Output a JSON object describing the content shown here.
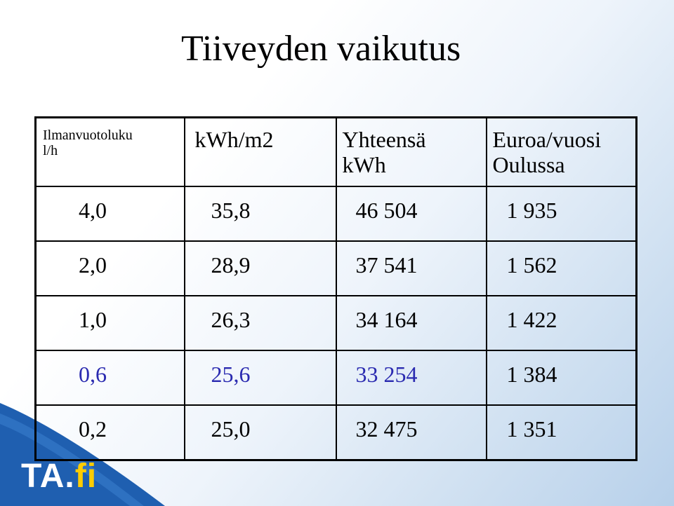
{
  "title": "Tiiveyden vaikutus",
  "table": {
    "headers": [
      [
        "Ilmanvuotoluku",
        "l/h"
      ],
      [
        "kWh/m2",
        ""
      ],
      [
        "Yhteensä",
        "kWh"
      ],
      [
        "Euroa/vuosi",
        "Oulussa"
      ]
    ],
    "rows": [
      {
        "cells": [
          "4,0",
          "35,8",
          "46 504",
          "1 935"
        ],
        "color": "#000000"
      },
      {
        "cells": [
          "2,0",
          "28,9",
          "37 541",
          "1 562"
        ],
        "color": "#000000"
      },
      {
        "cells": [
          "1,0",
          "26,3",
          "34 164",
          "1 422"
        ],
        "color": "#000000"
      },
      {
        "cells": [
          "0,6",
          "25,6",
          "33 254",
          "1 384"
        ],
        "color": "#2a2ab0",
        "last_cell_color": "#000000"
      },
      {
        "cells": [
          "0,2",
          "25,0",
          "32 475",
          "1 351"
        ],
        "color": "#000000"
      }
    ]
  },
  "logo": {
    "brand": "TA.",
    "suffix": "fi",
    "colors": {
      "swoosh": "#1f5fb0",
      "text": "#ffffff",
      "suffix": "#ffcc00"
    }
  }
}
